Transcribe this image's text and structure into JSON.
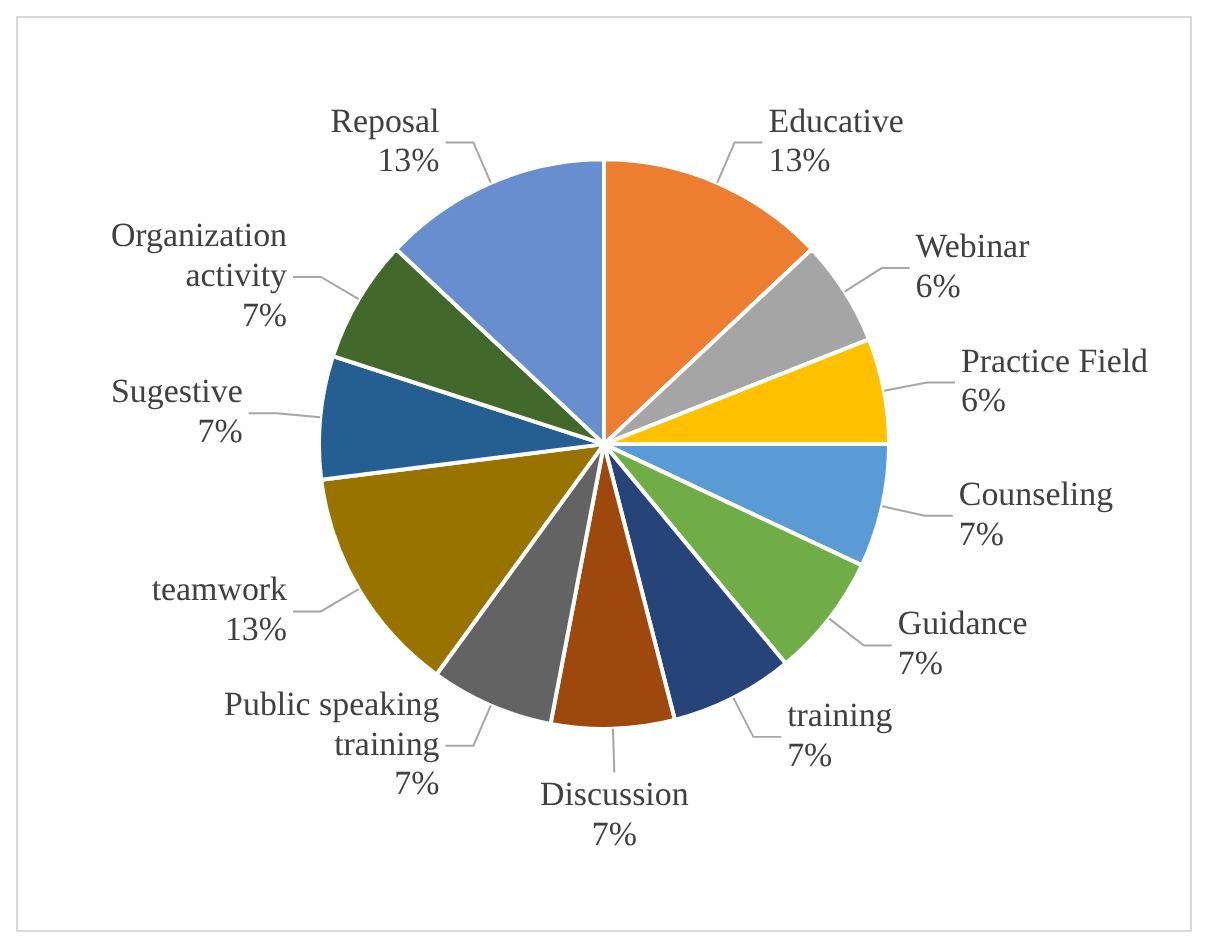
{
  "chart_data": {
    "type": "pie",
    "categories": [
      "Educative",
      "Webinar",
      "Practice Field",
      "Counseling",
      "Guidance",
      "training",
      "Discussion",
      "Public speaking training",
      "teamwork",
      "Sugestive",
      "Organization activity",
      "Reposal"
    ],
    "values": [
      13,
      6,
      6,
      7,
      7,
      7,
      7,
      7,
      13,
      7,
      7,
      13
    ],
    "value_labels": [
      "13%",
      "6%",
      "6%",
      "7%",
      "7%",
      "7%",
      "7%",
      "7%",
      "13%",
      "7%",
      "7%",
      "13%"
    ],
    "colors": [
      "#ed7d31",
      "#a5a5a5",
      "#ffc000",
      "#5b9bd5",
      "#70ad47",
      "#264478",
      "#9e480e",
      "#636363",
      "#997300",
      "#255e91",
      "#43682b",
      "#698ed0"
    ],
    "legend": false
  }
}
